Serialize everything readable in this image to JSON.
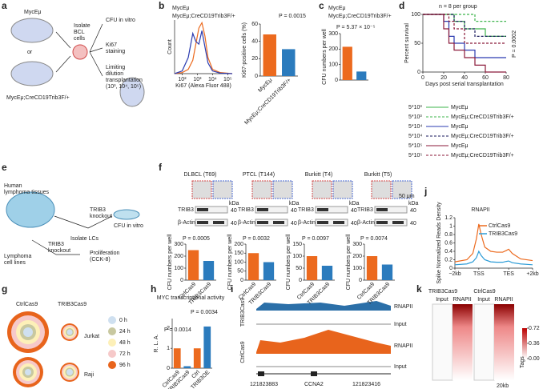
{
  "panel_letters": [
    "a",
    "b",
    "c",
    "d",
    "e",
    "f",
    "g",
    "h",
    "i",
    "j",
    "k"
  ],
  "panels": {
    "a": {
      "mouse_top": "MycEμ",
      "or": "or",
      "mouse_bottom": "MycEμ;CreCD19Trib3F/+",
      "isolate": [
        "Isolate",
        "BCL",
        "cells"
      ],
      "cfu": "CFU in vitro",
      "ki67": [
        "Ki67",
        "staining"
      ],
      "transplant": [
        "Limiting",
        "dilution",
        "transplantation",
        "(10³, 10⁴, 10⁵)"
      ]
    },
    "e": {
      "tissues": [
        "Human",
        "lymphoma tissues"
      ],
      "isolate": "Isolate LCs",
      "knockout1": [
        "TRIB3",
        "knockout"
      ],
      "cfu": "CFU in vitro",
      "lines": [
        "Lymphoma",
        "cell lines"
      ],
      "knockout2": [
        "TRIB3",
        "knockout"
      ],
      "prolif": [
        "Proliferation",
        "(CCK-8)"
      ]
    },
    "g": {
      "ctrl": "CtrlCas9",
      "trib3": "TRIB3Cas9",
      "jurkat": "Jurkat",
      "raji": "Raji",
      "legend": [
        "0 h",
        "24 h",
        "48 h",
        "72 h",
        "96 h"
      ]
    },
    "i": {
      "tracks": [
        "RNAPII",
        "Input",
        "RNAPII",
        "Input"
      ],
      "groups": [
        "TRIB3Cas9",
        "CtrlCas9"
      ],
      "coord_left": "121823883",
      "gene": "CCNA2",
      "coord_right": "121823416"
    },
    "k": {
      "groups": [
        "TRIB3Cas9",
        "CtrlCas9"
      ],
      "cols": [
        "Input",
        "RNAPII",
        "Input",
        "RNAPII"
      ],
      "scale_ticks": [
        0.72,
        0.36,
        {
          "value": 0,
          "label": "0.00"
        }
      ],
      "scale_title": "Tags",
      "span": "20kb"
    }
  },
  "chart_data": [
    {
      "type": "line",
      "xlabel": "Ki67 (Alexa Fluor 488)",
      "ylabel": "Count",
      "xlim": [
        1.5,
        5.3
      ],
      "ylim": [
        0,
        100
      ],
      "xticks": [
        {
          "value": 2,
          "label": "10²"
        },
        {
          "value": 3,
          "label": "10³"
        },
        {
          "value": 4,
          "label": "10⁴"
        },
        {
          "value": 5,
          "label": "10⁵"
        }
      ],
      "x": [
        1.5,
        2,
        2.4,
        2.7,
        2.9,
        3.1,
        3.3,
        3.5,
        3.7,
        4,
        4.5,
        5.3
      ],
      "series": [
        {
          "name": "MycEμ",
          "color": "#ec6a1e",
          "values": [
            0,
            2,
            8,
            25,
            55,
            85,
            95,
            70,
            30,
            8,
            2,
            0
          ]
        },
        {
          "name": "MycEμ;CreCD19Trib3F/+",
          "color": "#2b3bb0",
          "values": [
            0,
            5,
            30,
            75,
            60,
            55,
            80,
            50,
            20,
            5,
            1,
            0
          ]
        }
      ]
    },
    {
      "type": "bar",
      "ylabel": "Ki67-positive cells (%)",
      "ylim": [
        0,
        60
      ],
      "yticks": [
        0,
        20,
        40,
        60
      ],
      "categories": [
        "MycEμ",
        "MycEμ;CreCD19Trib3F/+"
      ],
      "values": [
        48,
        31
      ],
      "colors": [
        "#ec6a1e",
        "#2b7bbd"
      ],
      "annotations": [
        "P = 0.0015"
      ]
    },
    {
      "type": "bar",
      "ylabel": "CFU numbers per well",
      "ylim": [
        0,
        300
      ],
      "yticks": [
        0,
        100,
        200,
        300
      ],
      "series": [
        {
          "name": "MycEμ",
          "color": "#ec6a1e",
          "values": [
            215
          ]
        },
        {
          "name": "MycEμ;CreCD19Trib3F/+",
          "color": "#2b7bbd",
          "values": [
            55
          ]
        }
      ],
      "annotations": [
        "P = 5.37 × 10⁻⁵"
      ]
    },
    {
      "type": "line",
      "step": true,
      "xlabel": "Days post serial transplantation",
      "ylabel": "Percent survival",
      "xlim": [
        0,
        80
      ],
      "ylim": [
        0,
        100
      ],
      "xticks": [
        0,
        20,
        40,
        60,
        80
      ],
      "yticks": [
        0,
        50,
        100
      ],
      "annotations": [
        "n = 8 per group",
        "P = 0.0002"
      ],
      "x": [
        0,
        15,
        20,
        25,
        30,
        40,
        50,
        60,
        70,
        80
      ],
      "series": [
        {
          "dose": "5*10³",
          "name": "MycEμ",
          "color": "#3cb44b",
          "dash": false,
          "values": [
            100,
            100,
            100,
            100,
            88,
            75,
            75,
            62,
            62,
            62
          ]
        },
        {
          "dose": "5*10³",
          "name": "MycEμ;CreCD19Trib3F/+",
          "color": "#3cb44b",
          "dash": true,
          "values": [
            100,
            100,
            100,
            100,
            100,
            100,
            88,
            88,
            88,
            88
          ]
        },
        {
          "dose": "5*10⁴",
          "name": "MycEμ",
          "color": "#2b3bb0",
          "dash": false,
          "values": [
            100,
            100,
            88,
            62,
            50,
            38,
            25,
            25,
            25,
            25
          ]
        },
        {
          "dose": "5*10⁴",
          "name": "MycEμ;CreCD19Trib3F/+",
          "color": "#1a1a5e",
          "dash": true,
          "values": [
            100,
            100,
            100,
            100,
            88,
            75,
            62,
            62,
            62,
            62
          ]
        },
        {
          "dose": "5*10⁵",
          "name": "MycEμ",
          "color": "#8b1a3a",
          "dash": false,
          "values": [
            100,
            100,
            75,
            50,
            38,
            25,
            12,
            0,
            0,
            0
          ]
        },
        {
          "dose": "5*10⁵",
          "name": "MycEμ;CreCD19Trib3F/+",
          "color": "#8b1a3a",
          "dash": true,
          "values": [
            100,
            100,
            100,
            88,
            75,
            50,
            50,
            50,
            50,
            50
          ]
        }
      ]
    },
    {
      "type": "bar",
      "title": "DLBCL (T69)",
      "ylabel": "CFU numbers per well",
      "ylim": [
        0,
        300
      ],
      "yticks": [
        0,
        100,
        200,
        300
      ],
      "categories": [
        "CtrlCas9",
        "TRIB3Cas9"
      ],
      "values": [
        250,
        160
      ],
      "colors": [
        "#ec6a1e",
        "#2b7bbd"
      ],
      "annotations": [
        "P = 0.0005"
      ],
      "blot": {
        "markers": [
          "TRIB3",
          "β-Actin"
        ],
        "unit": "kDa",
        "sizes": [
          40,
          40
        ]
      }
    },
    {
      "type": "bar",
      "title": "PTCL (T144)",
      "ylabel": "CFU numbers per well",
      "ylim": [
        0,
        200
      ],
      "yticks": [
        0,
        50,
        100,
        150,
        200
      ],
      "categories": [
        "CtrlCas9",
        "TRIB3Cas9"
      ],
      "values": [
        150,
        100
      ],
      "colors": [
        "#ec6a1e",
        "#2b7bbd"
      ],
      "annotations": [
        "P = 0.0032"
      ],
      "blot": {
        "markers": [
          "TRIB3",
          "β-Actin"
        ],
        "unit": "kDa",
        "sizes": [
          40,
          40
        ]
      }
    },
    {
      "type": "bar",
      "title": "Burkitt (T4)",
      "ylabel": "CFU numbers per well",
      "ylim": [
        0,
        150
      ],
      "yticks": [
        0,
        50,
        100,
        150
      ],
      "categories": [
        "CtrlCas9",
        "TRIB3Cas9"
      ],
      "values": [
        100,
        60
      ],
      "colors": [
        "#ec6a1e",
        "#2b7bbd"
      ],
      "annotations": [
        "P = 0.0097"
      ],
      "blot": {
        "markers": [
          "TRIB3",
          "β-Actin"
        ],
        "unit": "kDa",
        "sizes": [
          40,
          40
        ]
      }
    },
    {
      "type": "bar",
      "title": "Burkitt (T5)",
      "ylabel": "CFU numbers per well",
      "ylim": [
        0,
        300
      ],
      "yticks": [
        0,
        100,
        200,
        300
      ],
      "categories": [
        "CtrlCas9",
        "TRIB3Cas9"
      ],
      "values": [
        200,
        130
      ],
      "colors": [
        "#ec6a1e",
        "#2b7bbd"
      ],
      "annotations": [
        "P = 0.0074"
      ],
      "blot": {
        "markers": [
          "TRIB3",
          "β-Actin"
        ],
        "unit": "kDa",
        "sizes": [
          40,
          40
        ],
        "scale": "50 μm"
      }
    },
    {
      "type": "bar",
      "title": "MYC transcriptional activity",
      "ylabel": "R. L. A.",
      "ylim": [
        0,
        2.5
      ],
      "yticks": [
        0,
        1,
        2
      ],
      "categories": [
        "CtrlCas9",
        "TRIB3Cas9",
        "Ctrl",
        "TRIB3OE"
      ],
      "values": [
        1.0,
        0.1,
        1.0,
        2.1
      ],
      "colors": [
        "#ec6a1e",
        "#2b7bbd",
        "#ec6a1e",
        "#2b7bbd"
      ],
      "annotations": [
        "P = 0.0014",
        "P = 0.0034"
      ]
    },
    {
      "type": "line",
      "title": "RNAPII",
      "ylabel": "Spike Normalized Reads Density",
      "xlim": [
        -2,
        4.5
      ],
      "ylim": [
        0,
        1.2
      ],
      "yticks": [
        0,
        0.2,
        0.4,
        0.6,
        0.8,
        1.0,
        1.2
      ],
      "xticks": [
        {
          "value": -2,
          "label": "−2kb"
        },
        {
          "value": 0,
          "label": "TSS"
        },
        {
          "value": 2.5,
          "label": "TES"
        },
        {
          "value": 4.5,
          "label": "+2kb"
        }
      ],
      "x": [
        -2,
        -1,
        -0.5,
        -0.2,
        0,
        0.2,
        0.5,
        1,
        1.5,
        2,
        2.3,
        2.5,
        2.8,
        3.5,
        4.5
      ],
      "series": [
        {
          "name": "CtrlCas9",
          "color": "#ec6a1e",
          "values": [
            0.15,
            0.2,
            0.35,
            0.7,
            1.05,
            0.8,
            0.5,
            0.4,
            0.38,
            0.38,
            0.42,
            0.45,
            0.35,
            0.22,
            0.18
          ]
        },
        {
          "name": "TRIB3Cas9",
          "color": "#2b9bd6",
          "values": [
            0.08,
            0.1,
            0.15,
            0.25,
            0.4,
            0.3,
            0.2,
            0.15,
            0.14,
            0.14,
            0.16,
            0.17,
            0.13,
            0.1,
            0.08
          ]
        }
      ]
    }
  ]
}
